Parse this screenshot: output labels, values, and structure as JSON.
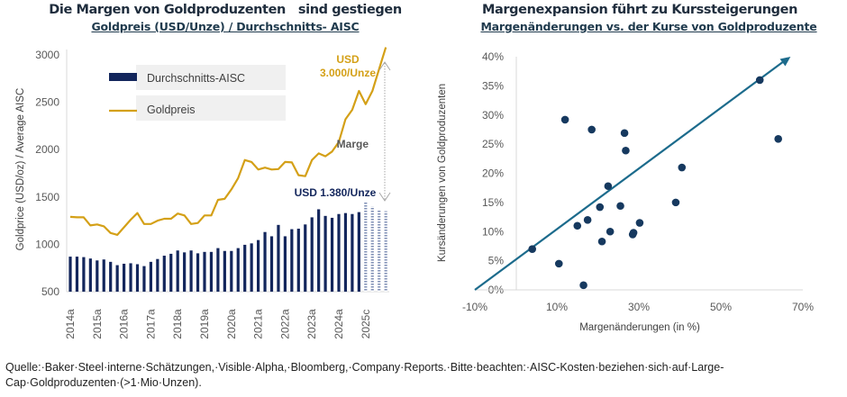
{
  "chart_data": [
    {
      "type": "bar+line",
      "title": "Die Margen von Goldproduzenten   sind gestiegen",
      "subtitle": "Goldpreis (USD/Unze) / Durchschnitts- AISC",
      "ylabel": "Goldprice (USD/oz) / Average AISC",
      "xlabel": "",
      "ylim": [
        500,
        3000
      ],
      "yticks": [
        "3000",
        "2500",
        "2000",
        "1500",
        "1000",
        "500"
      ],
      "ytick_values": [
        3000,
        2500,
        2000,
        1500,
        1000,
        500
      ],
      "xtick_labels": [
        "2014a",
        "2015a",
        "2016a",
        "2017a",
        "2018a",
        "2019a",
        "2020a",
        "2021a",
        "2022a",
        "2023a",
        "2024a",
        "2025c"
      ],
      "grid": false,
      "legend": [
        {
          "label": "Durchschnitts-AISC",
          "color": "#13265c"
        },
        {
          "label": "Goldpreis",
          "color": "#d4a017"
        }
      ],
      "legend_position": "top-left",
      "annotations": {
        "gold_label_1": "USD",
        "gold_label_2": "3.000/Unze",
        "aisc_label": "USD 1.380/Unze",
        "margin_label": "Marge"
      },
      "forecast_bars_from_index": 44,
      "series": [
        {
          "name": "Durchschnitts-AISC",
          "type": "bar",
          "color": "#13265c",
          "forecast_color": "#7f8fb5",
          "values": [
            870,
            870,
            865,
            850,
            830,
            840,
            815,
            780,
            795,
            800,
            790,
            770,
            815,
            845,
            880,
            900,
            935,
            915,
            935,
            905,
            920,
            920,
            960,
            930,
            930,
            960,
            995,
            1010,
            1045,
            1130,
            1085,
            1205,
            1085,
            1160,
            1165,
            1210,
            1285,
            1370,
            1300,
            1280,
            1320,
            1330,
            1320,
            1340,
            1450,
            1400,
            1360,
            1350
          ]
        },
        {
          "name": "Goldpreis",
          "type": "line",
          "color": "#d4a017",
          "values": [
            1290,
            1285,
            1285,
            1200,
            1210,
            1190,
            1120,
            1100,
            1180,
            1260,
            1330,
            1215,
            1215,
            1250,
            1270,
            1270,
            1325,
            1305,
            1215,
            1225,
            1305,
            1305,
            1470,
            1480,
            1580,
            1700,
            1890,
            1870,
            1790,
            1810,
            1790,
            1795,
            1870,
            1865,
            1730,
            1720,
            1890,
            1960,
            1930,
            1980,
            2080,
            2320,
            2420,
            2620,
            2480,
            2620,
            2850,
            3080
          ]
        }
      ]
    },
    {
      "type": "scatter",
      "title": "Margenexpansion führt zu Kurssteigerungen",
      "subtitle": "Margenänderungen vs. der Kurse von Goldproduzente",
      "xlabel": "Margenänderungen (in %)",
      "ylabel": "Kursänderungen von Goldproduzenten",
      "xlim": [
        -10,
        70
      ],
      "ylim": [
        0,
        40
      ],
      "xticks": [
        "-10%",
        "10%",
        "30%",
        "50%",
        "70%"
      ],
      "xtick_values": [
        -10,
        10,
        30,
        50,
        70
      ],
      "yticks": [
        "40%",
        "35%",
        "30%",
        "25%",
        "20%",
        "15%",
        "10%",
        "5%",
        "0%"
      ],
      "ytick_values": [
        40,
        35,
        30,
        25,
        20,
        15,
        10,
        5,
        0
      ],
      "grid": false,
      "point_color": "#16395f",
      "trend_color": "#1c6b8c",
      "trendline": {
        "x": [
          -10,
          67
        ],
        "y": [
          0,
          40
        ]
      },
      "points": [
        {
          "x": 4,
          "y": 7.0
        },
        {
          "x": 10.5,
          "y": 4.5
        },
        {
          "x": 12,
          "y": 29.2
        },
        {
          "x": 15,
          "y": 11.0
        },
        {
          "x": 16.5,
          "y": 0.8
        },
        {
          "x": 17.5,
          "y": 12.0
        },
        {
          "x": 18.5,
          "y": 27.5
        },
        {
          "x": 20.5,
          "y": 14.2
        },
        {
          "x": 21,
          "y": 8.3
        },
        {
          "x": 22.5,
          "y": 17.8
        },
        {
          "x": 23,
          "y": 10.0
        },
        {
          "x": 25.5,
          "y": 14.4
        },
        {
          "x": 26.5,
          "y": 26.9
        },
        {
          "x": 26.8,
          "y": 23.9
        },
        {
          "x": 28.5,
          "y": 9.5
        },
        {
          "x": 28.7,
          "y": 9.8
        },
        {
          "x": 30.2,
          "y": 11.5
        },
        {
          "x": 39,
          "y": 15.0
        },
        {
          "x": 40.5,
          "y": 21.0
        },
        {
          "x": 59.5,
          "y": 36.0
        },
        {
          "x": 64,
          "y": 25.9
        }
      ]
    }
  ],
  "source_text": "Quelle:·Baker·Steel·interne·Schätzungen,·Visible·Alpha,·Bloomberg,·Company·Reports.·Bitte·beachten:·AISC-Kosten·beziehen·sich·auf·Large-Cap·Goldproduzenten·(>1·Mio·Unzen)."
}
